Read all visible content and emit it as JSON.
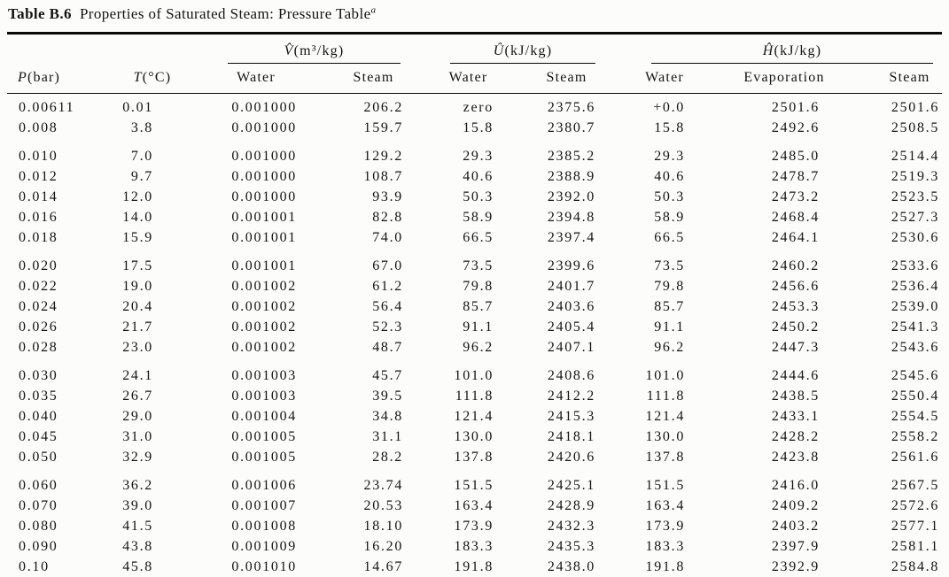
{
  "page": {
    "background": "#fcfcfb",
    "text_color": "#141414",
    "rule_color": "#0a0a0a"
  },
  "table": {
    "title": {
      "label": "Table B.6",
      "text": "Properties of Saturated Steam: Pressure Table",
      "footnote_marker": "a"
    },
    "column_groups": [
      {
        "var": "V̂",
        "unit": "(m³/kg)",
        "span": 2
      },
      {
        "var": "Û",
        "unit": "(kJ/kg)",
        "span": 2
      },
      {
        "var": "Ĥ",
        "unit": "(kJ/kg)",
        "span": 3
      }
    ],
    "columns": [
      {
        "var": "P",
        "unit": "(bar)"
      },
      {
        "var": "T",
        "unit": "(°C)"
      },
      {
        "label": "Water"
      },
      {
        "label": "Steam"
      },
      {
        "label": "Water"
      },
      {
        "label": "Steam"
      },
      {
        "label": "Water"
      },
      {
        "label": "Evaporation"
      },
      {
        "label": "Steam"
      }
    ],
    "row_groups": [
      [
        [
          "0.00611",
          "0.01",
          "0.001000",
          "206.2",
          "zero",
          "2375.6",
          "+0.0",
          "2501.6",
          "2501.6"
        ],
        [
          "0.008",
          "3.8",
          "0.001000",
          "159.7",
          "15.8",
          "2380.7",
          "15.8",
          "2492.6",
          "2508.5"
        ]
      ],
      [
        [
          "0.010",
          "7.0",
          "0.001000",
          "129.2",
          "29.3",
          "2385.2",
          "29.3",
          "2485.0",
          "2514.4"
        ],
        [
          "0.012",
          "9.7",
          "0.001000",
          "108.7",
          "40.6",
          "2388.9",
          "40.6",
          "2478.7",
          "2519.3"
        ],
        [
          "0.014",
          "12.0",
          "0.001000",
          "93.9",
          "50.3",
          "2392.0",
          "50.3",
          "2473.2",
          "2523.5"
        ],
        [
          "0.016",
          "14.0",
          "0.001001",
          "82.8",
          "58.9",
          "2394.8",
          "58.9",
          "2468.4",
          "2527.3"
        ],
        [
          "0.018",
          "15.9",
          "0.001001",
          "74.0",
          "66.5",
          "2397.4",
          "66.5",
          "2464.1",
          "2530.6"
        ]
      ],
      [
        [
          "0.020",
          "17.5",
          "0.001001",
          "67.0",
          "73.5",
          "2399.6",
          "73.5",
          "2460.2",
          "2533.6"
        ],
        [
          "0.022",
          "19.0",
          "0.001002",
          "61.2",
          "79.8",
          "2401.7",
          "79.8",
          "2456.6",
          "2536.4"
        ],
        [
          "0.024",
          "20.4",
          "0.001002",
          "56.4",
          "85.7",
          "2403.6",
          "85.7",
          "2453.3",
          "2539.0"
        ],
        [
          "0.026",
          "21.7",
          "0.001002",
          "52.3",
          "91.1",
          "2405.4",
          "91.1",
          "2450.2",
          "2541.3"
        ],
        [
          "0.028",
          "23.0",
          "0.001002",
          "48.7",
          "96.2",
          "2407.1",
          "96.2",
          "2447.3",
          "2543.6"
        ]
      ],
      [
        [
          "0.030",
          "24.1",
          "0.001003",
          "45.7",
          "101.0",
          "2408.6",
          "101.0",
          "2444.6",
          "2545.6"
        ],
        [
          "0.035",
          "26.7",
          "0.001003",
          "39.5",
          "111.8",
          "2412.2",
          "111.8",
          "2438.5",
          "2550.4"
        ],
        [
          "0.040",
          "29.0",
          "0.001004",
          "34.8",
          "121.4",
          "2415.3",
          "121.4",
          "2433.1",
          "2554.5"
        ],
        [
          "0.045",
          "31.0",
          "0.001005",
          "31.1",
          "130.0",
          "2418.1",
          "130.0",
          "2428.2",
          "2558.2"
        ],
        [
          "0.050",
          "32.9",
          "0.001005",
          "28.2",
          "137.8",
          "2420.6",
          "137.8",
          "2423.8",
          "2561.6"
        ]
      ],
      [
        [
          "0.060",
          "36.2",
          "0.001006",
          "23.74",
          "151.5",
          "2425.1",
          "151.5",
          "2416.0",
          "2567.5"
        ],
        [
          "0.070",
          "39.0",
          "0.001007",
          "20.53",
          "163.4",
          "2428.9",
          "163.4",
          "2409.2",
          "2572.6"
        ],
        [
          "0.080",
          "41.5",
          "0.001008",
          "18.10",
          "173.9",
          "2432.3",
          "173.9",
          "2403.2",
          "2577.1"
        ],
        [
          "0.090",
          "43.8",
          "0.001009",
          "16.20",
          "183.3",
          "2435.3",
          "183.3",
          "2397.9",
          "2581.1"
        ],
        [
          "0.10",
          "45.8",
          "0.001010",
          "14.67",
          "191.8",
          "2438.0",
          "191.8",
          "2392.9",
          "2584.8"
        ]
      ]
    ]
  }
}
